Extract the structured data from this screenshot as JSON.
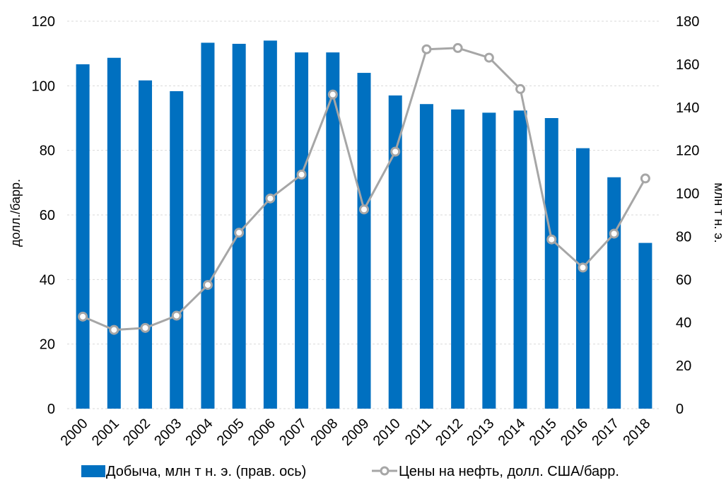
{
  "chart_data": {
    "type": "bar",
    "categories": [
      "2000",
      "2001",
      "2002",
      "2003",
      "2004",
      "2005",
      "2006",
      "2007",
      "2008",
      "2009",
      "2010",
      "2011",
      "2012",
      "2013",
      "2014",
      "2015",
      "2016",
      "2017",
      "2018"
    ],
    "series": [
      {
        "name": "Добыча, млн т н. э. (прав. ось)",
        "type": "bar",
        "axis": "right",
        "color": "#0070C0",
        "values": [
          160,
          163,
          152.5,
          147.5,
          170,
          169.5,
          171,
          165.5,
          165.5,
          156,
          145.5,
          141.5,
          139,
          137.5,
          138.5,
          135,
          121,
          107.5,
          77
        ]
      },
      {
        "name": "Цены на нефть, долл. США/барр.",
        "type": "line",
        "axis": "left",
        "color": "#A6A6A6",
        "values": [
          28.5,
          24.4,
          25.0,
          28.8,
          38.3,
          54.5,
          65.1,
          72.5,
          97.3,
          61.7,
          79.6,
          111.3,
          111.7,
          108.7,
          99.0,
          52.4,
          43.7,
          54.2,
          71.3
        ]
      }
    ],
    "ylabel_left": "долл./барр.",
    "ylabel_right": "млн т н. э.",
    "ylim_left": [
      0,
      120
    ],
    "ylim_right": [
      0,
      180
    ],
    "yticks_left": [
      "0",
      "20",
      "40",
      "60",
      "80",
      "100",
      "120"
    ],
    "yticks_right": [
      "0",
      "20",
      "40",
      "60",
      "80",
      "100",
      "120",
      "140",
      "160",
      "180"
    ],
    "grid": true,
    "legend_position": "bottom"
  }
}
